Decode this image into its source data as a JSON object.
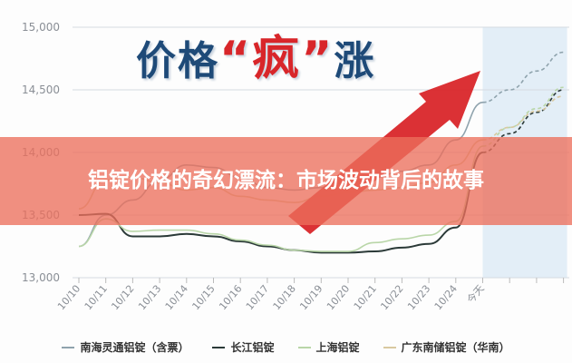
{
  "headline": {
    "pre": "价格",
    "quote_open": "“",
    "hot": "疯",
    "quote_close": "”",
    "post": "涨"
  },
  "banner": {
    "title": "铝锭价格的奇幻漂流：市场波动背后的故事"
  },
  "chart_data": {
    "type": "line",
    "ylim": [
      13000,
      15000
    ],
    "yticks": [
      "15,000",
      "14,500",
      "14,000",
      "13,500",
      "13,000"
    ],
    "ytick_values": [
      15000,
      14500,
      14000,
      13500,
      13000
    ],
    "categories": [
      "10/10",
      "10/11",
      "10/12",
      "10/13",
      "10/14",
      "10/15",
      "10/16",
      "10/17",
      "10/18",
      "10/19",
      "10/20",
      "10/21",
      "10/22",
      "10/23",
      "10/24",
      "今天"
    ],
    "forecast_steps": 3,
    "grid": true,
    "legend_position": "bottom",
    "series": [
      {
        "name": "南海灵通铝锭（含票）",
        "color": "#8fa3ad",
        "values": [
          13250,
          13500,
          13620,
          13780,
          13900,
          13880,
          13800,
          13720,
          13700,
          13720,
          13760,
          13800,
          13850,
          13900,
          14100,
          14400
        ],
        "forecast": [
          14500,
          14650,
          14800
        ]
      },
      {
        "name": "长江铝锭",
        "color": "#2b3a38",
        "values": [
          13500,
          13510,
          13330,
          13330,
          13350,
          13330,
          13290,
          13250,
          13220,
          13200,
          13200,
          13210,
          13240,
          13270,
          13400,
          14000
        ],
        "forecast": [
          14150,
          14320,
          14500
        ]
      },
      {
        "name": "上海铝锭",
        "color": "#b9d6a8",
        "values": [
          13250,
          13470,
          13370,
          13380,
          13380,
          13350,
          13300,
          13260,
          13220,
          13210,
          13210,
          13280,
          13310,
          13340,
          13450,
          14050
        ],
        "forecast": [
          14200,
          14350,
          14520
        ]
      },
      {
        "name": "广东南储铝锭（华南）",
        "color": "#d9c9a0",
        "values": [
          13550,
          13780,
          13800,
          13760,
          13700,
          13720,
          13650,
          13620,
          13600,
          13650,
          13680,
          13700,
          13720,
          13760,
          13900,
          14100
        ],
        "forecast": [
          14200,
          14330,
          14450
        ]
      }
    ],
    "forecast_region_color": "#e3eef7"
  },
  "legend": [
    {
      "label": "南海灵通铝锭（含票）",
      "color": "#8fa3ad"
    },
    {
      "label": "长江铝锭",
      "color": "#2b3a38"
    },
    {
      "label": "上海铝锭",
      "color": "#b9d6a8"
    },
    {
      "label": "广东南储铝锭（华南）",
      "color": "#d9c9a0"
    }
  ]
}
